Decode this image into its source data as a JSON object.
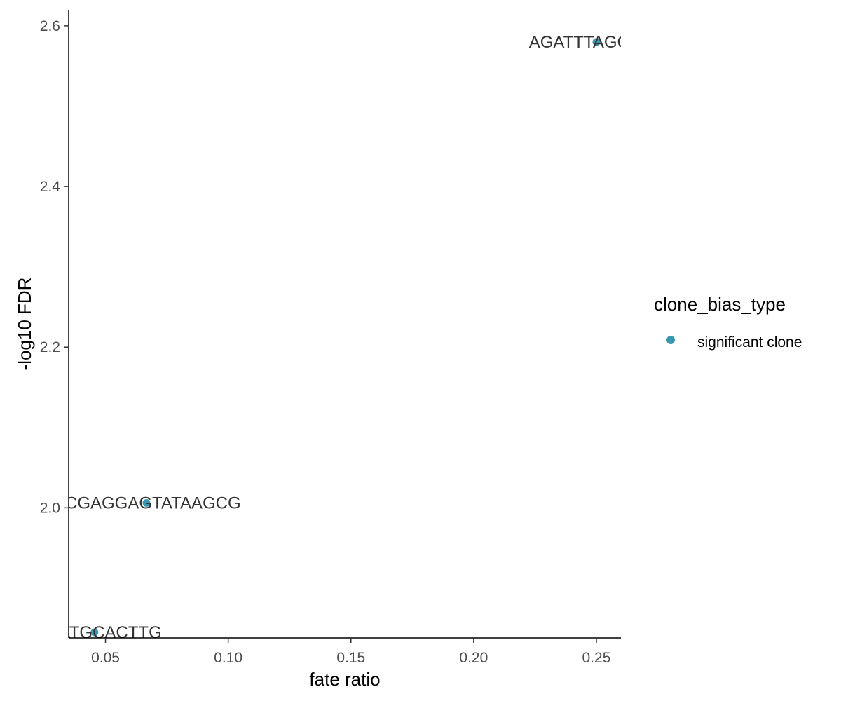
{
  "chart_data": {
    "type": "scatter",
    "xlabel": "fate ratio",
    "ylabel": "-log10 FDR",
    "xlim": [
      0.035,
      0.26
    ],
    "ylim": [
      1.838,
      2.62
    ],
    "x_ticks": [
      0.05,
      0.1,
      0.15,
      0.2,
      0.25
    ],
    "x_tick_labels": [
      "0.05",
      "0.10",
      "0.15",
      "0.20",
      "0.25"
    ],
    "y_ticks": [
      2.0,
      2.2,
      2.4,
      2.6
    ],
    "y_tick_labels": [
      "2.0",
      "2.2",
      "2.4",
      "2.6"
    ],
    "grid": false,
    "legend": {
      "title": "clone_bias_type",
      "placement": "right",
      "entries": [
        {
          "label": "significant clone",
          "color": "#3a97b0"
        }
      ]
    },
    "series": [
      {
        "color": "#3a97b0",
        "points": [
          {
            "x": 0.25,
            "y": 2.58,
            "label": "AGATTTAGGAAA"
          },
          {
            "x": 0.0667,
            "y": 2.006,
            "label": "GCGAGGAGTATAAGCG"
          },
          {
            "x": 0.0455,
            "y": 1.845,
            "label": "GATATGCACTTG"
          }
        ]
      }
    ]
  }
}
